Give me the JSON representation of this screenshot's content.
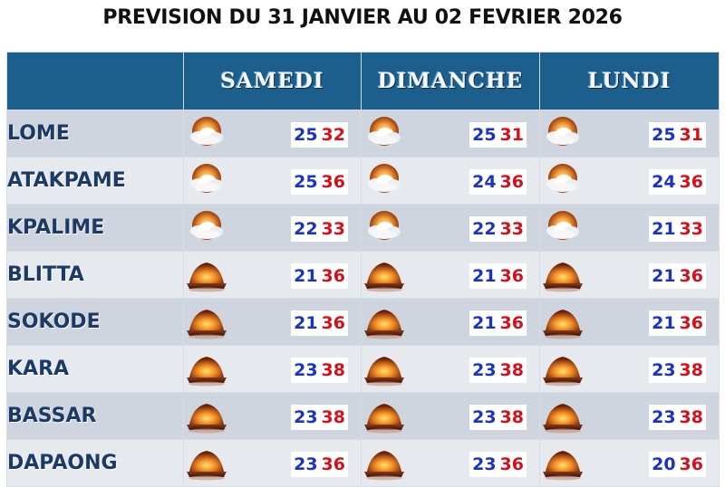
{
  "title": "PREVISION DU 31 JANVIER AU 02 FEVRIER 2026",
  "days": [
    "SAMEDI",
    "DIMANCHE",
    "LUNDI"
  ],
  "rows": [
    {
      "city": "LOME",
      "icon": "cloud-sun-icon",
      "forecasts": [
        {
          "min": "25",
          "max": "32"
        },
        {
          "min": "25",
          "max": "31"
        },
        {
          "min": "25",
          "max": "31"
        }
      ]
    },
    {
      "city": "ATAKPAME",
      "icon": "cloud-sun-icon",
      "forecasts": [
        {
          "min": "25",
          "max": "36"
        },
        {
          "min": "24",
          "max": "36"
        },
        {
          "min": "24",
          "max": "36"
        }
      ]
    },
    {
      "city": "KPALIME",
      "icon": "cloud-sun-icon",
      "forecasts": [
        {
          "min": "22",
          "max": "33"
        },
        {
          "min": "22",
          "max": "33"
        },
        {
          "min": "21",
          "max": "33"
        }
      ]
    },
    {
      "city": "BLITTA",
      "icon": "sunny-haze-icon",
      "forecasts": [
        {
          "min": "21",
          "max": "36"
        },
        {
          "min": "21",
          "max": "36"
        },
        {
          "min": "21",
          "max": "36"
        }
      ]
    },
    {
      "city": "SOKODE",
      "icon": "sunny-haze-icon",
      "forecasts": [
        {
          "min": "21",
          "max": "36"
        },
        {
          "min": "21",
          "max": "36"
        },
        {
          "min": "21",
          "max": "36"
        }
      ]
    },
    {
      "city": "KARA",
      "icon": "sunny-haze-icon",
      "forecasts": [
        {
          "min": "23",
          "max": "38"
        },
        {
          "min": "23",
          "max": "38"
        },
        {
          "min": "23",
          "max": "38"
        }
      ]
    },
    {
      "city": "BASSAR",
      "icon": "sunny-haze-icon",
      "forecasts": [
        {
          "min": "23",
          "max": "38"
        },
        {
          "min": "23",
          "max": "38"
        },
        {
          "min": "23",
          "max": "38"
        }
      ]
    },
    {
      "city": "DAPAONG",
      "icon": "sunny-haze-icon",
      "forecasts": [
        {
          "min": "23",
          "max": "36"
        },
        {
          "min": "23",
          "max": "36"
        },
        {
          "min": "20",
          "max": "36"
        }
      ]
    }
  ],
  "colors": {
    "header": "#1c5f8c",
    "min_temp": "#1a32c8",
    "max_temp": "#d6101a",
    "city": "#1b3a66"
  }
}
